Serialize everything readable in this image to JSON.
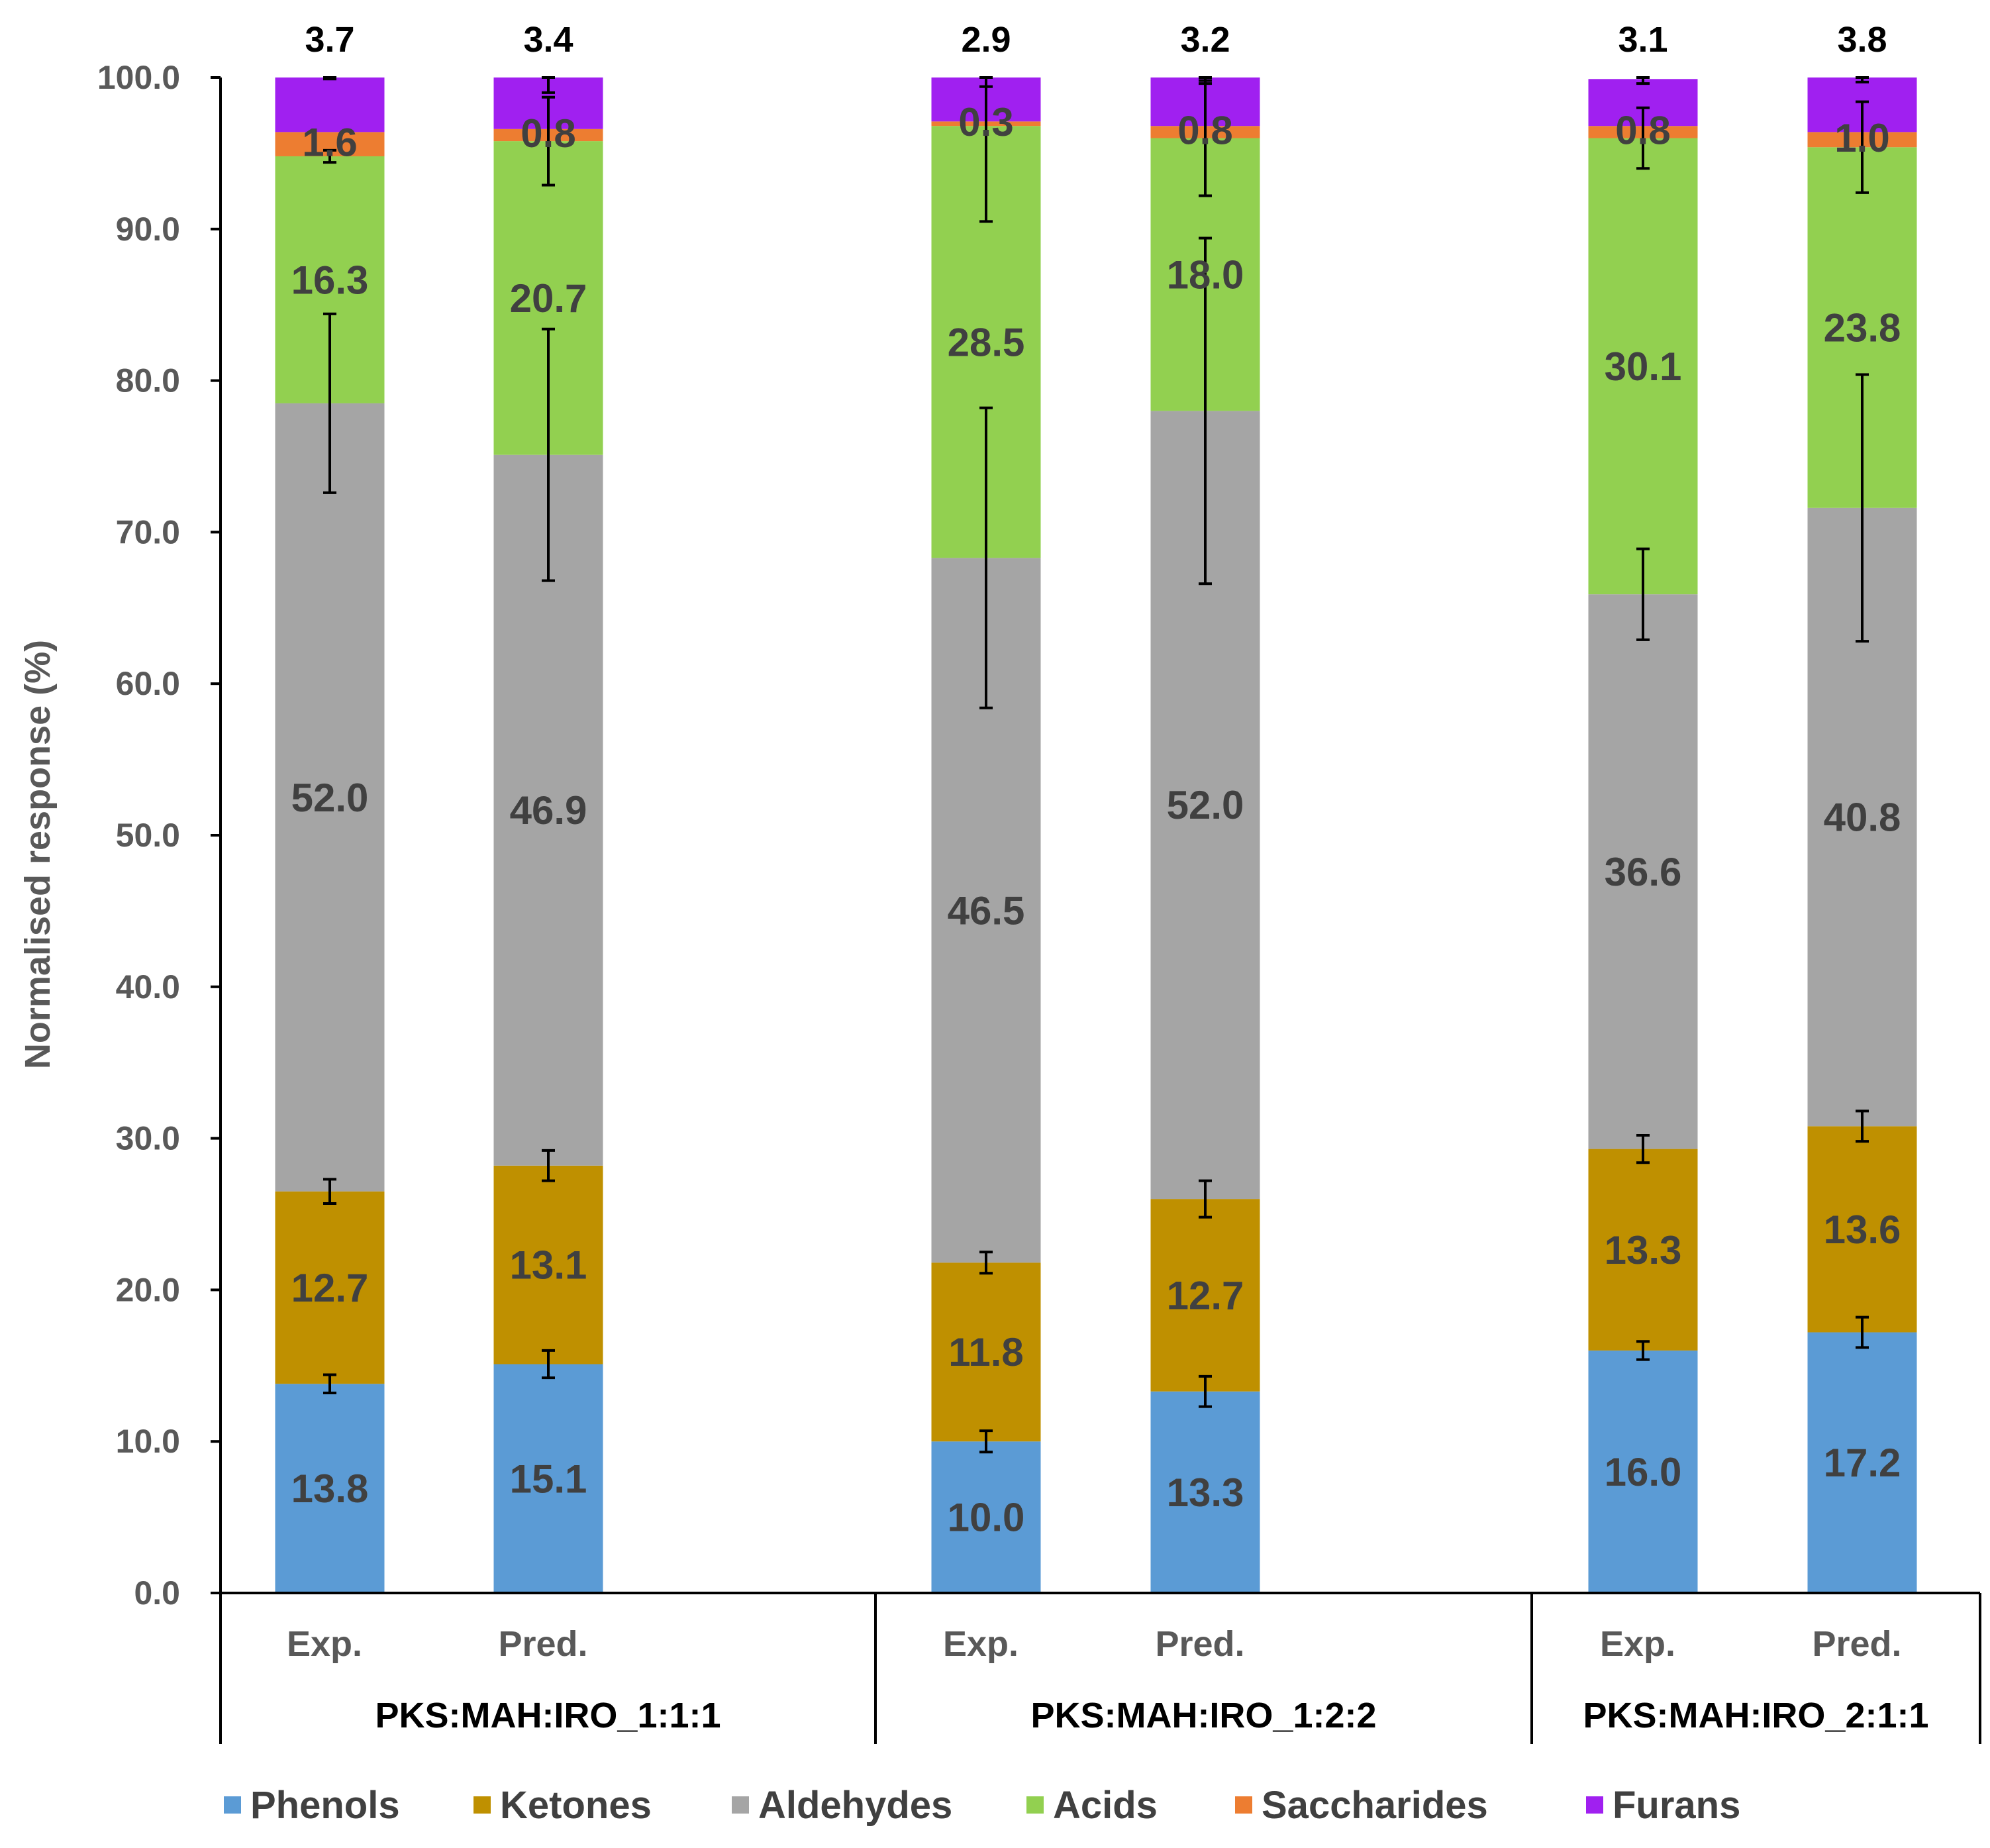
{
  "chart_data": {
    "type": "bar",
    "stacked": true,
    "title": "",
    "xlabel": "",
    "ylabel": "Normalised response (%)",
    "ylim": [
      0,
      100
    ],
    "ytick_step": 10,
    "ytick_labels": [
      "0.0",
      "10.0",
      "20.0",
      "30.0",
      "40.0",
      "50.0",
      "60.0",
      "70.0",
      "80.0",
      "90.0",
      "100.0"
    ],
    "groups": [
      {
        "name": "PKS:MAH:IRO_1:1:1",
        "bars": [
          "Exp.",
          "Pred."
        ]
      },
      {
        "name": "PKS:MAH:IRO_1:2:2",
        "bars": [
          "Exp.",
          "Pred."
        ]
      },
      {
        "name": "PKS:MAH:IRO_2:1:1",
        "bars": [
          "Exp.",
          "Pred."
        ]
      }
    ],
    "series": [
      {
        "name": "Phenols",
        "color": "#5B9BD5",
        "values": [
          13.8,
          15.1,
          10.0,
          13.3,
          16.0,
          17.2
        ],
        "labels": [
          "13.8",
          "15.1",
          "10.0",
          "13.3",
          "16.0",
          "17.2"
        ],
        "errors": [
          0.6,
          0.9,
          0.7,
          1.0,
          0.6,
          1.0
        ]
      },
      {
        "name": "Ketones",
        "color": "#BF9000",
        "values": [
          12.7,
          13.1,
          11.8,
          12.7,
          13.3,
          13.6
        ],
        "labels": [
          "12.7",
          "13.1",
          "11.8",
          "12.7",
          "13.3",
          "13.6"
        ],
        "errors": [
          0.8,
          1.0,
          0.7,
          1.2,
          0.9,
          1.0
        ]
      },
      {
        "name": "Aldehydes",
        "color": "#A5A5A5",
        "values": [
          52.0,
          46.9,
          46.5,
          52.0,
          36.6,
          40.8
        ],
        "labels": [
          "52.0",
          "46.9",
          "46.5",
          "52.0",
          "36.6",
          "40.8"
        ],
        "errors": [
          5.9,
          8.3,
          9.9,
          11.4,
          3.0,
          8.8
        ]
      },
      {
        "name": "Acids",
        "color": "#92D050",
        "values": [
          16.3,
          20.7,
          28.5,
          18.0,
          30.1,
          23.8
        ],
        "labels": [
          "16.3",
          "20.7",
          "28.5",
          "18.0",
          "30.1",
          "23.8"
        ],
        "errors": [
          0.4,
          2.9,
          6.3,
          3.8,
          2.0,
          3.0
        ]
      },
      {
        "name": "Saccharides",
        "color": "#ED7D31",
        "values": [
          1.6,
          0.8,
          0.3,
          0.8,
          0.8,
          1.0
        ],
        "labels": [
          "1.6",
          "0.8",
          "0.3",
          "0.8",
          "0.8",
          "1.0"
        ],
        "errors": [
          0,
          0,
          0,
          0,
          0,
          0
        ]
      },
      {
        "name": "Furans",
        "color": "#A020F0",
        "values": [
          3.7,
          3.4,
          2.9,
          3.2,
          3.1,
          3.8
        ],
        "labels": [
          "3.7",
          "3.4",
          "2.9",
          "3.2",
          "3.1",
          "3.8"
        ],
        "errors": [
          0.2,
          1.0,
          0.6,
          0.4,
          0.3,
          0.5
        ]
      }
    ],
    "legend": {
      "position": "bottom"
    }
  }
}
